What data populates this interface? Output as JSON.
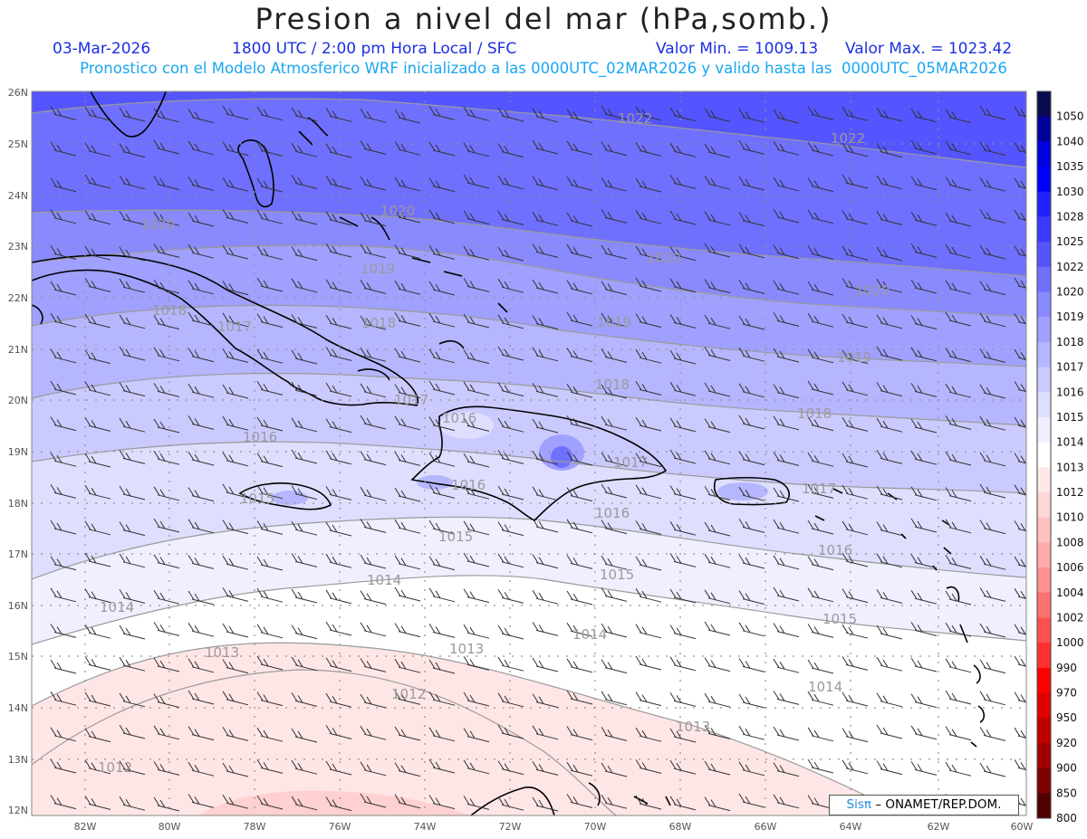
{
  "header": {
    "title": "Presion a nivel del mar (hPa,somb.)",
    "date": "03-Mar-2026",
    "time": "1800 UTC / 2:00 pm Hora Local / SFC",
    "min_label": "Valor Min. = 1009.13",
    "max_label": "Valor Max. = 1023.42",
    "subtitle": "Pronostico con el Modelo Atmosferico WRF inicializado a las 0000UTC_02MAR2026 y valido hasta las  0000UTC_05MAR2026"
  },
  "map": {
    "lat_labels": [
      "26N",
      "25N",
      "24N",
      "23N",
      "22N",
      "21N",
      "20N",
      "19N",
      "18N",
      "17N",
      "16N",
      "15N",
      "14N",
      "13N",
      "12N"
    ],
    "lon_labels": [
      "82W",
      "80W",
      "78W",
      "76W",
      "74W",
      "72W",
      "70W",
      "68W",
      "66W",
      "64W",
      "62W",
      "60W"
    ],
    "isobar_labels": [
      {
        "text": "1022"
      },
      {
        "text": "1022"
      },
      {
        "text": "1020"
      },
      {
        "text": "1020"
      },
      {
        "text": "1020"
      },
      {
        "text": "1020"
      },
      {
        "text": "1019"
      },
      {
        "text": "1019"
      },
      {
        "text": "1019"
      },
      {
        "text": "1018"
      },
      {
        "text": "1018"
      },
      {
        "text": "1018"
      },
      {
        "text": "1018"
      },
      {
        "text": "1017"
      },
      {
        "text": "1017"
      },
      {
        "text": "1017"
      },
      {
        "text": "1017"
      },
      {
        "text": "1016"
      },
      {
        "text": "1016"
      },
      {
        "text": "1016"
      },
      {
        "text": "1016"
      },
      {
        "text": "1016"
      },
      {
        "text": "1015"
      },
      {
        "text": "1015"
      },
      {
        "text": "1015"
      },
      {
        "text": "1015"
      },
      {
        "text": "1014"
      },
      {
        "text": "1014"
      },
      {
        "text": "1014"
      },
      {
        "text": "1014"
      },
      {
        "text": "1013"
      },
      {
        "text": "1013"
      },
      {
        "text": "1013"
      },
      {
        "text": "1012"
      },
      {
        "text": "1012"
      }
    ]
  },
  "colorbar": {
    "levels": [
      "1050",
      "1040",
      "1035",
      "1030",
      "1028",
      "1025",
      "1022",
      "1020",
      "1019",
      "1018",
      "1017",
      "1016",
      "1015",
      "1014",
      "1013",
      "1012",
      "1010",
      "1008",
      "1006",
      "1004",
      "1002",
      "1000",
      "990",
      "970",
      "950",
      "920",
      "900",
      "850",
      "800"
    ],
    "colors": [
      "#0a0a50",
      "#00009a",
      "#0000e0",
      "#0000ff",
      "#2222ff",
      "#3a3aff",
      "#5555ff",
      "#7070ff",
      "#8a8aff",
      "#a0a0ff",
      "#b6b6ff",
      "#cacaff",
      "#dedeff",
      "#efefff",
      "#ffffff",
      "#ffe8e8",
      "#ffd6d6",
      "#ffc0c0",
      "#ffaaaa",
      "#ff9090",
      "#ff7070",
      "#ff5050",
      "#ff3030",
      "#ff0000",
      "#e00000",
      "#c00000",
      "#a00000",
      "#800000",
      "#500000"
    ]
  },
  "credit": {
    "brand": "Sisπ",
    "text": " – ONAMET/REP.DOM."
  }
}
